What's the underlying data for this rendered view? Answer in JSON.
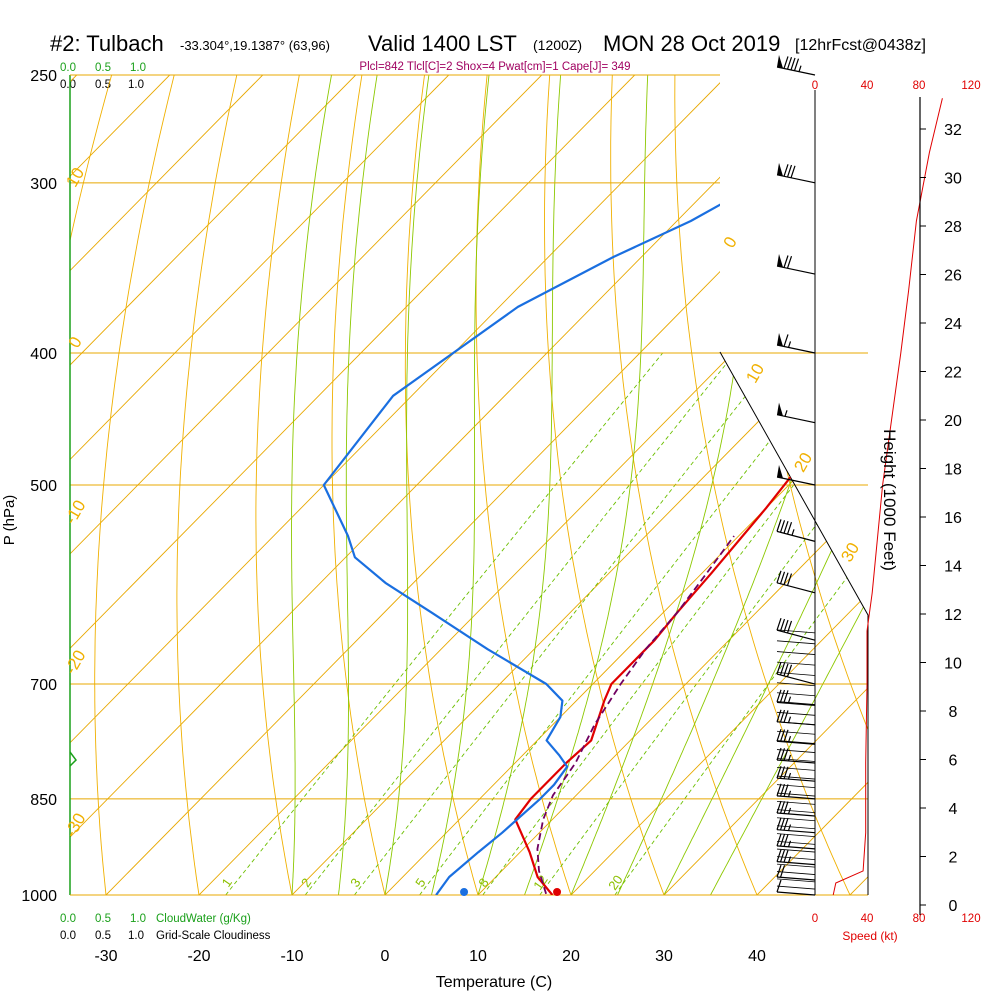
{
  "header": {
    "station": "#2: Tulbach",
    "coords": "-33.304°,19.1387° (63,96)",
    "valid": "Valid 1400 LST",
    "valid_z": "(1200Z)",
    "date": "MON 28 Oct 2019",
    "fcst": "[12hrFcst@0438z]"
  },
  "params_line": "Plcl=842 Tlcl[C]=2 Shox=4 Pwat[cm]=1 Cape[J]= 349",
  "colors": {
    "temperature": "#e00000",
    "dewpoint": "#1a6fe0",
    "parcel": "#700060",
    "isotherm": "#e8a800",
    "dry_adiabat": "#f0b000",
    "moist_adiabat": "#8cc800",
    "mixing_ratio": "#6cbf00",
    "cloudwater": "#1aa01a",
    "params": "#a00060",
    "speed": "#e00000",
    "barbs": "#000000"
  },
  "cloud_scales": {
    "top_green": [
      "0.0",
      "0.5",
      "1.0"
    ],
    "top_black": [
      "0.0",
      "0.5",
      "1.0"
    ],
    "bottom_green": [
      "0.0",
      "0.5",
      "1.0"
    ],
    "bottom_green_label": "CloudWater (g/Kg)",
    "bottom_black": [
      "0.0",
      "0.5",
      "1.0"
    ],
    "bottom_black_label": "Grid-Scale Cloudiness"
  },
  "speed_scale": {
    "ticks": [
      "0",
      "40",
      "80",
      "120"
    ],
    "label": "Speed (kt)"
  },
  "chart_data": {
    "type": "line",
    "title": "#2: Tulbach -33.304°,19.1387° (63,96) Valid 1400 LST (1200Z) MON 28 Oct 2019 [12hrFcst@0438z]",
    "xlabel": "Temperature (C)",
    "ylabel": "P (hPa)",
    "y2label": "Height (1000 Feet)",
    "x_ticks": [
      "-30",
      "-20",
      "-10",
      "0",
      "10",
      "20",
      "30",
      "40"
    ],
    "xlim": [
      -35,
      45
    ],
    "p_ticks": [
      "250",
      "300",
      "400",
      "500",
      "700",
      "850",
      "1000"
    ],
    "ylim_hpa": [
      1000,
      250
    ],
    "height_ticks": [
      "0",
      "2",
      "4",
      "6",
      "8",
      "10",
      "12",
      "14",
      "16",
      "18",
      "20",
      "22",
      "24",
      "26",
      "28",
      "30",
      "32"
    ],
    "dry_adiabat_labels": [
      "10",
      "0",
      "-10",
      "-20",
      "-30",
      "0",
      "10",
      "20",
      "30"
    ],
    "mixing_ratio_labels": [
      "1",
      "2",
      "3",
      "5",
      "8",
      "12",
      "20"
    ],
    "grid": true,
    "series": [
      {
        "name": "Temperature",
        "points": [
          [
            18.0,
            1000
          ],
          [
            14.5,
            970
          ],
          [
            11.0,
            930
          ],
          [
            6.0,
            880
          ],
          [
            5.5,
            850
          ],
          [
            5.5,
            800
          ],
          [
            5.8,
            770
          ],
          [
            3.0,
            720
          ],
          [
            2.0,
            700
          ],
          [
            2.0,
            650
          ],
          [
            1.5,
            620
          ],
          [
            1.0,
            580
          ],
          [
            0.0,
            520
          ],
          [
            -1.0,
            480
          ],
          [
            -2.0,
            450
          ],
          [
            -2.8,
            420
          ],
          [
            -3.0,
            400
          ],
          [
            -3.0,
            370
          ],
          [
            -2.0,
            340
          ],
          [
            -0.5,
            310
          ],
          [
            0.5,
            300
          ],
          [
            1.0,
            285
          ],
          [
            0.8,
            265
          ]
        ]
      },
      {
        "name": "Dewpoint",
        "points": [
          [
            5.5,
            1000
          ],
          [
            5.0,
            970
          ],
          [
            5.5,
            930
          ],
          [
            6.0,
            900
          ],
          [
            6.5,
            850
          ],
          [
            6.5,
            830
          ],
          [
            6.0,
            805
          ],
          [
            4.0,
            790
          ],
          [
            1.0,
            770
          ],
          [
            0,
            740
          ],
          [
            -1.5,
            720
          ],
          [
            -5.0,
            700
          ],
          [
            -15.0,
            660
          ],
          [
            -25.0,
            620
          ],
          [
            -33.0,
            590
          ],
          [
            -39.0,
            565
          ],
          [
            -42.0,
            545
          ],
          [
            -50.0,
            500
          ],
          [
            -52.0,
            430
          ],
          [
            -48.0,
            370
          ],
          [
            -43.0,
            340
          ],
          [
            -38.5,
            320
          ],
          [
            -36.0,
            305
          ],
          [
            -33.0,
            285
          ],
          [
            -32.0,
            265
          ]
        ]
      },
      {
        "name": "Parcel",
        "points": [
          [
            17.2,
            998
          ],
          [
            14.0,
            960
          ],
          [
            11.5,
            925
          ],
          [
            9.0,
            880
          ],
          [
            7.5,
            845
          ],
          [
            6.5,
            800
          ],
          [
            4.5,
            750
          ],
          [
            3.0,
            700
          ],
          [
            2.0,
            660
          ],
          [
            1.5,
            620
          ],
          [
            0.5,
            580
          ],
          [
            -0.5,
            545
          ]
        ]
      },
      {
        "name": "Wind speed",
        "points": [
          [
            14,
            1000
          ],
          [
            16,
            980
          ],
          [
            37,
            960
          ],
          [
            39,
            900
          ],
          [
            39,
            800
          ],
          [
            40,
            700
          ],
          [
            40,
            640
          ],
          [
            44,
            600
          ],
          [
            52,
            500
          ],
          [
            60,
            440
          ],
          [
            66,
            400
          ],
          [
            72,
            360
          ],
          [
            78,
            320
          ],
          [
            88,
            285
          ],
          [
            98,
            260
          ]
        ]
      }
    ],
    "surface_markers": {
      "temperature": 18.5,
      "dewpoint": 8.5
    },
    "wind_barbs_hpa": [
      1000,
      975,
      950,
      925,
      900,
      875,
      850,
      825,
      800,
      775,
      750,
      725,
      700,
      650,
      600,
      550,
      500,
      450,
      400,
      350,
      300,
      250
    ]
  }
}
